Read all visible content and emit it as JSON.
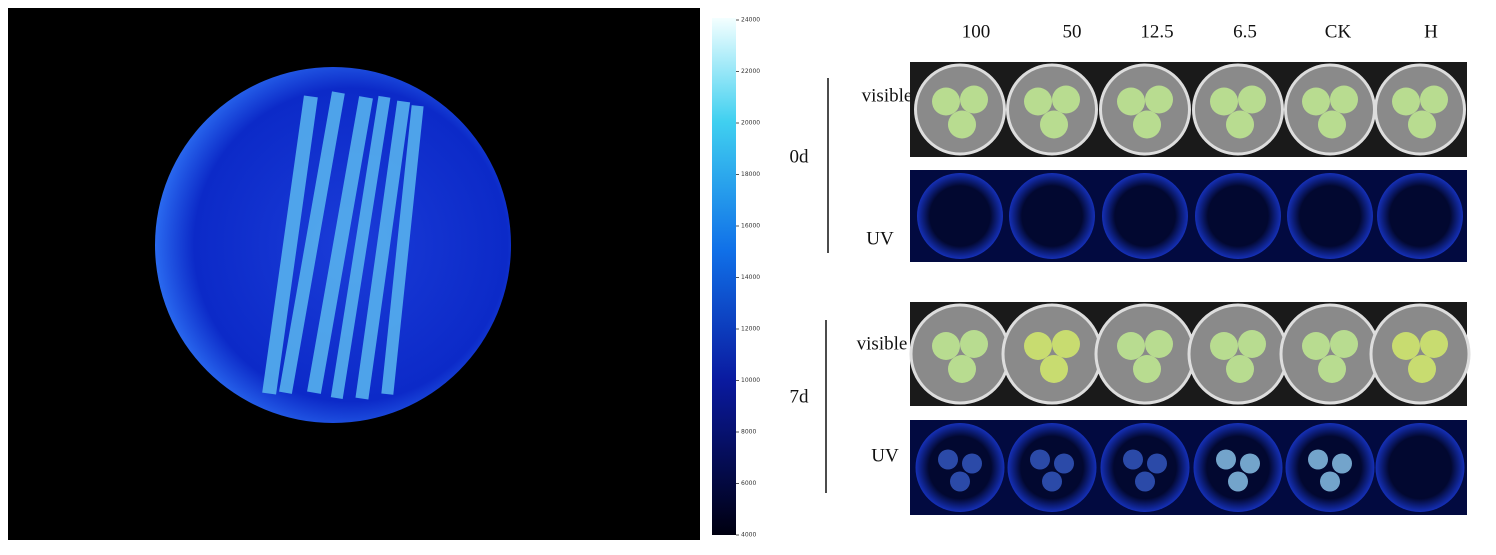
{
  "colorbar": {
    "ticks": [
      24000,
      22000,
      20000,
      18000,
      16000,
      14000,
      12000,
      10000,
      8000,
      6000,
      4000
    ]
  },
  "wells": {
    "columns": [
      "100",
      "50",
      "12.5",
      "6.5",
      "CK",
      "H"
    ],
    "groups": [
      {
        "label": "0d",
        "rows": [
          "visible",
          "UV"
        ]
      },
      {
        "label": "7d",
        "rows": [
          "visible",
          "UV"
        ]
      }
    ]
  }
}
